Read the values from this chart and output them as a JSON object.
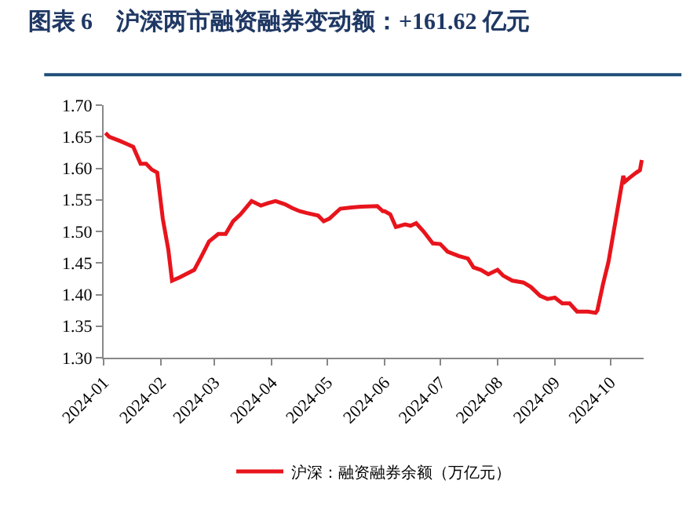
{
  "chart_data": {
    "type": "line",
    "title": "图表 6　沪深两市融资融券变动额：+161.62 亿元",
    "x": [
      "2024-01-02",
      "2024-01-04",
      "2024-01-10",
      "2024-01-14",
      "2024-01-17",
      "2024-01-21",
      "2024-01-24",
      "2024-01-27",
      "2024-01-30",
      "2024-02-02",
      "2024-02-05",
      "2024-02-07",
      "2024-02-11",
      "2024-02-19",
      "2024-02-23",
      "2024-02-27",
      "2024-03-03",
      "2024-03-07",
      "2024-03-11",
      "2024-03-15",
      "2024-03-21",
      "2024-03-26",
      "2024-03-30",
      "2024-04-03",
      "2024-04-08",
      "2024-04-12",
      "2024-04-16",
      "2024-04-20",
      "2024-04-26",
      "2024-04-29",
      "2024-05-02",
      "2024-05-08",
      "2024-05-14",
      "2024-05-19",
      "2024-05-28",
      "2024-05-31",
      "2024-06-01",
      "2024-06-04",
      "2024-06-07",
      "2024-06-12",
      "2024-06-15",
      "2024-06-18",
      "2024-06-22",
      "2024-06-27",
      "2024-07-01",
      "2024-07-05",
      "2024-07-11",
      "2024-07-16",
      "2024-07-19",
      "2024-07-23",
      "2024-07-27",
      "2024-08-01",
      "2024-08-04",
      "2024-08-09",
      "2024-08-15",
      "2024-08-19",
      "2024-08-24",
      "2024-08-28",
      "2024-09-01",
      "2024-09-05",
      "2024-09-09",
      "2024-09-13",
      "2024-09-19",
      "2024-09-23",
      "2024-09-24",
      "2024-09-27",
      "2024-09-30",
      "2024-10-08",
      "2024-10-09",
      "2024-10-11",
      "2024-10-15",
      "2024-10-17",
      "2024-10-18"
    ],
    "series": [
      {
        "name": "沪深：融资融券余额（万亿元）",
        "color": "#e8141c",
        "values": [
          1.656,
          1.65,
          1.643,
          1.638,
          1.634,
          1.607,
          1.607,
          1.598,
          1.593,
          1.52,
          1.471,
          1.422,
          1.427,
          1.439,
          1.461,
          1.484,
          1.496,
          1.496,
          1.516,
          1.527,
          1.548,
          1.541,
          1.545,
          1.548,
          1.543,
          1.537,
          1.532,
          1.529,
          1.525,
          1.516,
          1.52,
          1.536,
          1.538,
          1.539,
          1.54,
          1.532,
          1.532,
          1.527,
          1.507,
          1.511,
          1.509,
          1.513,
          1.5,
          1.481,
          1.48,
          1.468,
          1.461,
          1.457,
          1.443,
          1.439,
          1.432,
          1.439,
          1.43,
          1.422,
          1.419,
          1.412,
          1.398,
          1.393,
          1.395,
          1.386,
          1.386,
          1.373,
          1.373,
          1.371,
          1.375,
          1.416,
          1.452,
          1.588,
          1.579,
          1.584,
          1.593,
          1.597,
          1.613
        ]
      }
    ],
    "xlim": [
      "2024-01-01",
      "2024-10-19"
    ],
    "xticks": [
      "2024-01",
      "2024-02",
      "2024-03",
      "2024-04",
      "2024-05",
      "2024-06",
      "2024-07",
      "2024-08",
      "2024-09",
      "2024-10"
    ],
    "ylim": [
      1.3,
      1.7
    ],
    "yticks": [
      {
        "value": 1.3,
        "label": "1.30"
      },
      {
        "value": 1.35,
        "label": "1.35"
      },
      {
        "value": 1.4,
        "label": "1.40"
      },
      {
        "value": 1.45,
        "label": "1.45"
      },
      {
        "value": 1.5,
        "label": "1.50"
      },
      {
        "value": 1.55,
        "label": "1.55"
      },
      {
        "value": 1.6,
        "label": "1.60"
      },
      {
        "value": 1.65,
        "label": "1.65"
      },
      {
        "value": 1.7,
        "label": "1.70"
      }
    ],
    "legend": "bottom",
    "marker": "none",
    "line_style": "solid"
  }
}
